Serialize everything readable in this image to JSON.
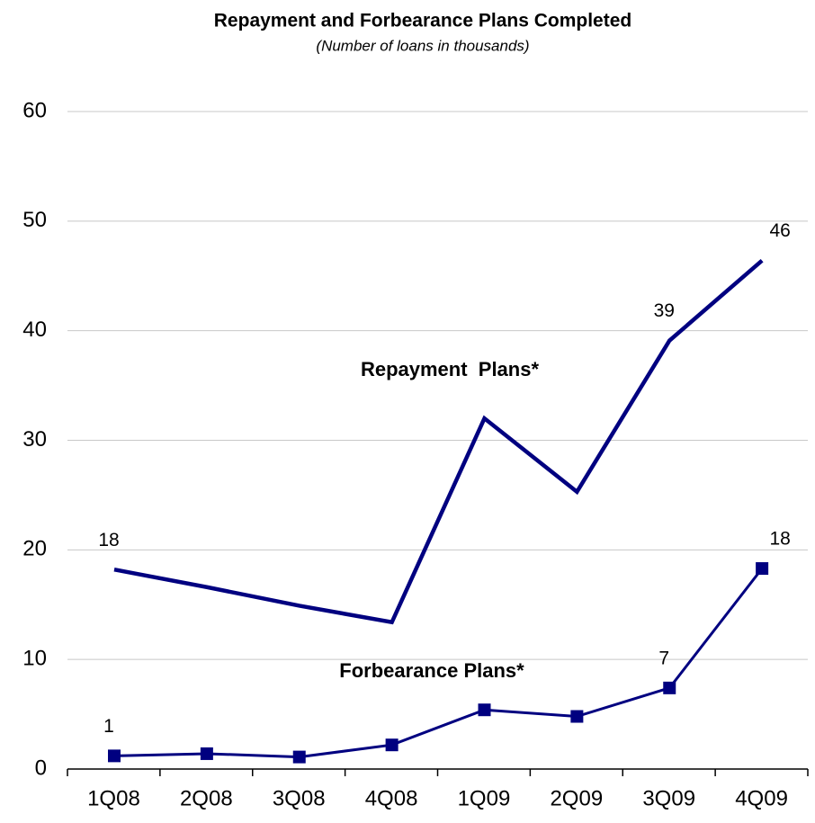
{
  "chart_data": {
    "type": "line",
    "title": "Repayment and Forbearance Plans Completed",
    "subtitle": "(Number of loans in thousands)",
    "categories": [
      "1Q08",
      "2Q08",
      "3Q08",
      "4Q08",
      "1Q09",
      "2Q09",
      "3Q09",
      "4Q09"
    ],
    "series": [
      {
        "name": "Repayment  Plans*",
        "color": "#000080",
        "marker": "none",
        "values": [
          18.2,
          16.6,
          14.9,
          13.4,
          32.0,
          25.3,
          39.1,
          46.4
        ],
        "value_labels": [
          "18",
          null,
          null,
          null,
          null,
          null,
          "39",
          "46"
        ]
      },
      {
        "name": "Forbearance Plans*",
        "color": "#000080",
        "marker": "square",
        "values": [
          1.2,
          1.4,
          1.1,
          2.2,
          5.4,
          4.8,
          7.4,
          18.3
        ],
        "value_labels": [
          "1",
          null,
          null,
          null,
          null,
          null,
          "7",
          "18"
        ]
      }
    ],
    "ylim": [
      0,
      60
    ],
    "yticks": [
      0,
      10,
      20,
      30,
      40,
      50,
      60
    ],
    "grid": true
  }
}
